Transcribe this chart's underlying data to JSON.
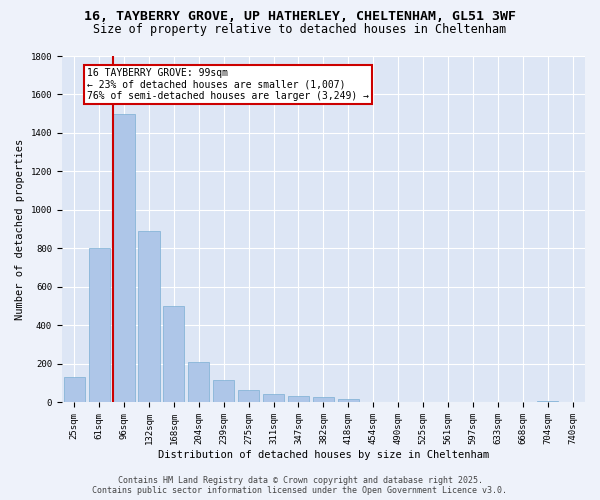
{
  "title_line1": "16, TAYBERRY GROVE, UP HATHERLEY, CHELTENHAM, GL51 3WF",
  "title_line2": "Size of property relative to detached houses in Cheltenham",
  "xlabel": "Distribution of detached houses by size in Cheltenham",
  "ylabel": "Number of detached properties",
  "categories": [
    "25sqm",
    "61sqm",
    "96sqm",
    "132sqm",
    "168sqm",
    "204sqm",
    "239sqm",
    "275sqm",
    "311sqm",
    "347sqm",
    "382sqm",
    "418sqm",
    "454sqm",
    "490sqm",
    "525sqm",
    "561sqm",
    "597sqm",
    "633sqm",
    "668sqm",
    "704sqm",
    "740sqm"
  ],
  "values": [
    130,
    805,
    1500,
    890,
    500,
    210,
    115,
    65,
    45,
    32,
    27,
    20,
    5,
    2,
    1,
    1,
    1,
    0,
    0,
    10,
    0
  ],
  "bar_color": "#aec6e8",
  "bar_edge_color": "#7bafd4",
  "highlight_bar_index": 2,
  "highlight_color": "#cc0000",
  "annotation_title": "16 TAYBERRY GROVE: 99sqm",
  "annotation_line1": "← 23% of detached houses are smaller (1,007)",
  "annotation_line2": "76% of semi-detached houses are larger (3,249) →",
  "annotation_box_color": "#cc0000",
  "ylim": [
    0,
    1800
  ],
  "yticks": [
    0,
    200,
    400,
    600,
    800,
    1000,
    1200,
    1400,
    1600,
    1800
  ],
  "footer_line1": "Contains HM Land Registry data © Crown copyright and database right 2025.",
  "footer_line2": "Contains public sector information licensed under the Open Government Licence v3.0.",
  "background_color": "#eef2fa",
  "plot_bg_color": "#dde6f5",
  "grid_color": "#ffffff",
  "title_fontsize": 9.5,
  "subtitle_fontsize": 8.5,
  "axis_label_fontsize": 7.5,
  "tick_fontsize": 6.5,
  "annotation_fontsize": 7,
  "footer_fontsize": 6
}
